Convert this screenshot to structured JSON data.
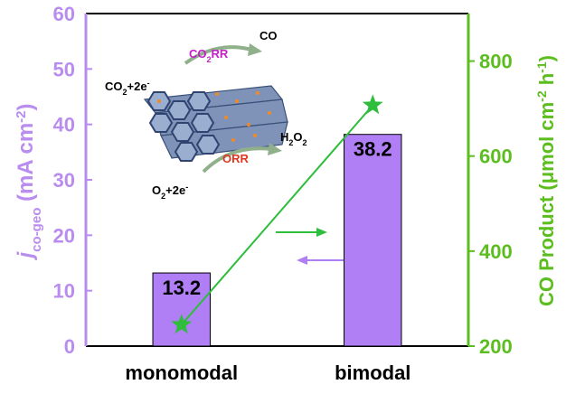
{
  "chart_data": {
    "type": "bar",
    "categories": [
      "monomodal",
      "bimodal"
    ],
    "series": [
      {
        "type": "bar",
        "values": [
          13.2,
          38.2
        ],
        "color": "#b07ef5"
      },
      {
        "type": "line",
        "axis": "y2",
        "values": [
          245,
          707
        ],
        "color": "#2ebd3c"
      }
    ],
    "ylim": [
      0,
      60
    ],
    "yticks": [
      0,
      10,
      20,
      30,
      40,
      50,
      60
    ],
    "y2lim": [
      200,
      900
    ],
    "y2ticks": [
      200,
      400,
      600,
      800
    ],
    "ylabel": [
      "j",
      "co-geo",
      " (mA cm",
      "-2",
      ")"
    ],
    "y2label": [
      "CO Product (μmol cm",
      "-2",
      " h",
      "-1",
      ")"
    ],
    "ycolor": "#b98cf0",
    "y2color": "#5cbd1f",
    "annotations": {
      "co2_reactant": [
        "CO",
        "2",
        "+2e",
        "-"
      ],
      "co2rr": [
        "CO",
        "2",
        "RR"
      ],
      "co": [
        "CO"
      ],
      "o2_reactant": [
        "O",
        "2",
        "+2e",
        "-"
      ],
      "orr": [
        "ORR"
      ],
      "h2o2": [
        "H",
        "2",
        "O",
        "2"
      ]
    }
  }
}
